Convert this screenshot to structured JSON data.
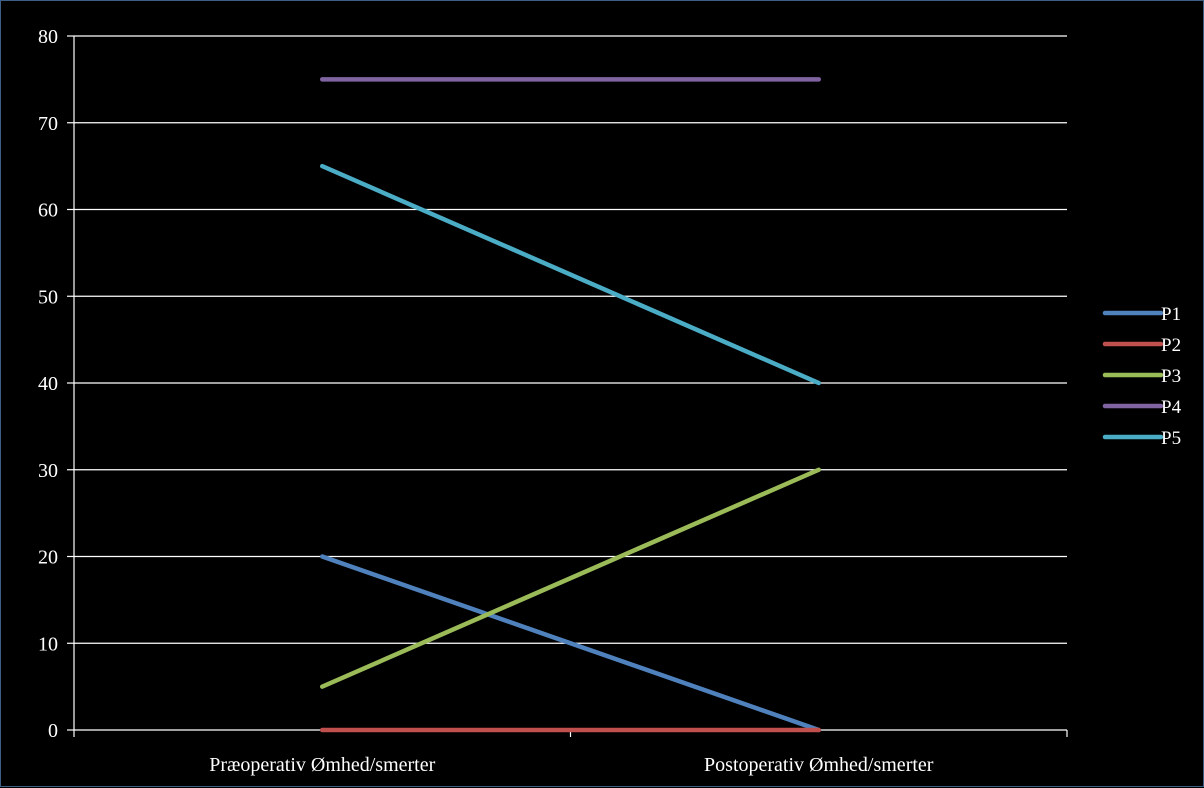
{
  "chart_data": {
    "type": "line",
    "title": "",
    "xlabel": "",
    "ylabel": "",
    "categories": [
      "Præoperativ Ømhed/smerter",
      "Postoperativ Ømhed/smerter"
    ],
    "ylim": [
      0,
      80
    ],
    "yticks": [
      0,
      10,
      20,
      30,
      40,
      50,
      60,
      70,
      80
    ],
    "grid": true,
    "legend_position": "right",
    "series": [
      {
        "name": "P1",
        "color": "#4f81bd",
        "values": [
          20,
          0
        ]
      },
      {
        "name": "P2",
        "color": "#c0504d",
        "values": [
          0,
          0
        ]
      },
      {
        "name": "P3",
        "color": "#9bbb59",
        "values": [
          5,
          30
        ]
      },
      {
        "name": "P4",
        "color": "#8064a2",
        "values": [
          75,
          75
        ]
      },
      {
        "name": "P5",
        "color": "#4bacc6",
        "values": [
          65,
          40
        ]
      }
    ]
  },
  "colors": {
    "background": "#000000",
    "frame_border": "#3d5f86",
    "gridline": "#ffffff",
    "text": "#ffffff"
  }
}
